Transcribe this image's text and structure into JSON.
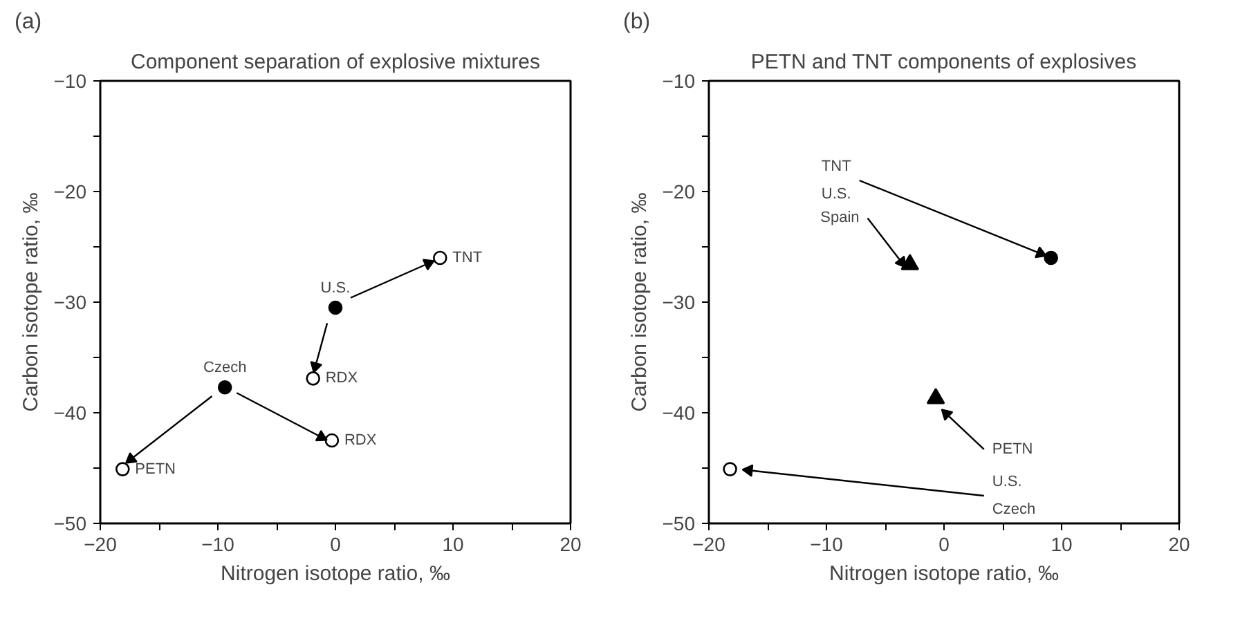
{
  "chart_data": [
    {
      "type": "scatter",
      "title": "Component separation of explosive mixtures",
      "xlabel": "Nitrogen isotope ratio, ‰",
      "ylabel": "Carbon isotope ratio, ‰",
      "xlim": [
        -20,
        20
      ],
      "ylim": [
        -50,
        -10
      ],
      "xticks": [
        -20,
        {
          "value": -15,
          "label": null
        },
        -10,
        {
          "value": -5,
          "label": null
        },
        0,
        {
          "value": 5,
          "label": null
        },
        10,
        {
          "value": 15,
          "label": null
        },
        20
      ],
      "yticks": [
        -50,
        {
          "value": -45,
          "label": null
        },
        -40,
        {
          "value": -35,
          "label": null
        },
        -30,
        {
          "value": -25,
          "label": null
        },
        -20,
        {
          "value": -15,
          "label": null
        },
        -10
      ],
      "grid": false,
      "series": [
        {
          "type": "scatter",
          "marker": "circle",
          "color": "#000000",
          "x": [
            0,
            -9.4
          ],
          "values": [
            -30.5,
            -37.7
          ]
        },
        {
          "type": "scatter",
          "marker": "circle",
          "color": "#ffffff",
          "x": [
            8.9,
            -1.9,
            -0.3,
            -18.1
          ],
          "values": [
            -26.0,
            -36.9,
            -42.5,
            -45.1
          ]
        },
        {
          "type": "line",
          "color": "#000000",
          "x": [
            1.3,
            7.9
          ],
          "values": [
            -29.6,
            -26.5
          ]
        },
        {
          "type": "line",
          "color": "#000000",
          "x": [
            -0.7,
            -1.7
          ],
          "values": [
            -31.9,
            -35.8
          ]
        },
        {
          "type": "line",
          "color": "#000000",
          "x": [
            -10.5,
            -17.4
          ],
          "values": [
            -38.5,
            -44.2
          ]
        },
        {
          "type": "line",
          "color": "#000000",
          "x": [
            -8.4,
            -1.2
          ],
          "values": [
            -38.2,
            -42.2
          ]
        }
      ],
      "annotations": [
        "(a)",
        {
          "text": "TNT",
          "x": 8.9,
          "y": -26.0
        },
        {
          "text": "U.S.",
          "x": 0,
          "y": -30.5
        },
        {
          "text": "RDX",
          "x": -1.9,
          "y": -36.9
        },
        {
          "text": "Czech",
          "x": -9.4,
          "y": -37.7
        },
        {
          "text": "RDX",
          "x": -0.3,
          "y": -42.5
        },
        {
          "text": "PETN",
          "x": -18.1,
          "y": -45.1
        }
      ]
    },
    {
      "type": "scatter",
      "title": "PETN and TNT components of explosives",
      "xlabel": "Nitrogen isotope ratio, ‰",
      "ylabel": "Carbon isotope ratio, ‰",
      "xlim": [
        -20,
        20
      ],
      "ylim": [
        -50,
        -10
      ],
      "xticks": [
        -20,
        {
          "value": -15,
          "label": null
        },
        -10,
        {
          "value": -5,
          "label": null
        },
        0,
        {
          "value": 5,
          "label": null
        },
        10,
        {
          "value": 15,
          "label": null
        },
        20
      ],
      "yticks": [
        -50,
        {
          "value": -45,
          "label": null
        },
        -40,
        {
          "value": -35,
          "label": null
        },
        -30,
        {
          "value": -25,
          "label": null
        },
        -20,
        {
          "value": -15,
          "label": null
        },
        -10
      ],
      "grid": false,
      "series": [
        {
          "type": "scatter",
          "marker": "circle",
          "color": "#000000",
          "x": [
            9.1
          ],
          "values": [
            -26.0
          ]
        },
        {
          "type": "scatter",
          "marker": "circle",
          "color": "#ffffff",
          "x": [
            -18.2
          ],
          "values": [
            -45.1
          ]
        },
        {
          "type": "scatter",
          "marker": "triangle",
          "color": "#000000",
          "x": [
            -2.9,
            -0.7
          ],
          "values": [
            -26.6,
            -38.7
          ]
        },
        {
          "type": "line",
          "color": "#000000",
          "x": [
            -7.2,
            8.2
          ],
          "values": [
            -19.0,
            -25.6
          ]
        },
        {
          "type": "line",
          "color": "#000000",
          "x": [
            -6.5,
            -3.6
          ],
          "values": [
            -22.4,
            -26.4
          ]
        },
        {
          "type": "line",
          "color": "#000000",
          "x": [
            3.4,
            0.2
          ],
          "values": [
            -43.3,
            -40.1
          ]
        },
        {
          "type": "line",
          "color": "#000000",
          "x": [
            3.4,
            -16.6
          ],
          "values": [
            -47.5,
            -45.2
          ]
        }
      ],
      "annotations": [
        "(b)",
        {
          "text": "TNT",
          "x": -7.2,
          "y": -19.0
        },
        {
          "text": "U.S.",
          "x": -7.2,
          "y": -19.0
        },
        {
          "text": "Spain",
          "x": -6.5,
          "y": -22.4
        },
        {
          "text": "PETN",
          "x": 3.4,
          "y": -43.3
        },
        {
          "text": "U.S.",
          "x": 3.4,
          "y": -47.5
        },
        {
          "text": "Czech",
          "x": 3.4,
          "y": -47.5
        }
      ]
    }
  ]
}
